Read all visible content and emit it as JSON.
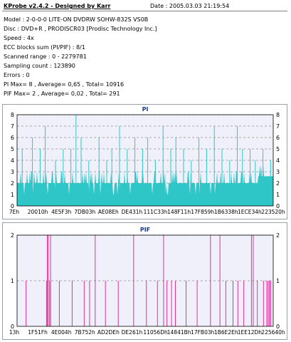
{
  "header": {
    "title": "KProbe v2.4.2 - Designed by Karr",
    "date": "Date : 2005.03.03 21:19:54"
  },
  "info_lines": [
    "Model : 2-0-0-0 LITE-ON DVDRW SOHW-832S  VS0B",
    "Disc : DVD+R , PRODISCR03 [Prodisc Technology Inc.]",
    "Speed : 4x",
    "ECC blocks sum (PI/PIF) : 8/1",
    "Scanned range : 0 - 2279781",
    "Sampling count : 123890",
    "Errors : 0",
    "PI Max= 8 , Average= 0,65 , Total= 10916",
    "PIF Max= 2 , Average= 0,02 , Total= 291"
  ],
  "colors": {
    "pi": "#2ec6c6",
    "pif": "#e0309a",
    "title": "#1a3a8a",
    "grid": "#909090",
    "plot_bg": "#f0f0fa"
  },
  "chart_data": [
    {
      "type": "bar",
      "title": "PI",
      "ylim": [
        0,
        8
      ],
      "y_ticks": [
        "0",
        "1",
        "2",
        "3",
        "4",
        "5",
        "6",
        "7",
        "8"
      ],
      "x_tick_labels": [
        "7Eh",
        "20010h",
        "4E5F3h",
        "7DB03h",
        "AE08Eh",
        "DE431h",
        "111C33h",
        "148F11h",
        "17F859h",
        "1B6338h",
        "1ECE34h",
        "223520h"
      ],
      "baseline": "mostly 1-3 with spikes up to 8",
      "spikes": [
        {
          "x_frac": 0.02,
          "y": 5
        },
        {
          "x_frac": 0.06,
          "y": 6
        },
        {
          "x_frac": 0.09,
          "y": 5
        },
        {
          "x_frac": 0.11,
          "y": 7
        },
        {
          "x_frac": 0.15,
          "y": 4
        },
        {
          "x_frac": 0.18,
          "y": 5
        },
        {
          "x_frac": 0.21,
          "y": 5
        },
        {
          "x_frac": 0.23,
          "y": 8
        },
        {
          "x_frac": 0.25,
          "y": 6
        },
        {
          "x_frac": 0.28,
          "y": 4
        },
        {
          "x_frac": 0.32,
          "y": 6
        },
        {
          "x_frac": 0.35,
          "y": 4
        },
        {
          "x_frac": 0.37,
          "y": 5
        },
        {
          "x_frac": 0.4,
          "y": 7
        },
        {
          "x_frac": 0.43,
          "y": 5
        },
        {
          "x_frac": 0.46,
          "y": 6
        },
        {
          "x_frac": 0.49,
          "y": 5
        },
        {
          "x_frac": 0.51,
          "y": 6
        },
        {
          "x_frac": 0.54,
          "y": 4
        },
        {
          "x_frac": 0.57,
          "y": 7
        },
        {
          "x_frac": 0.6,
          "y": 5
        },
        {
          "x_frac": 0.62,
          "y": 6
        },
        {
          "x_frac": 0.65,
          "y": 5
        },
        {
          "x_frac": 0.68,
          "y": 4
        },
        {
          "x_frac": 0.71,
          "y": 6
        },
        {
          "x_frac": 0.74,
          "y": 5
        },
        {
          "x_frac": 0.77,
          "y": 7
        },
        {
          "x_frac": 0.8,
          "y": 5
        },
        {
          "x_frac": 0.83,
          "y": 4
        },
        {
          "x_frac": 0.86,
          "y": 7
        },
        {
          "x_frac": 0.88,
          "y": 5
        },
        {
          "x_frac": 0.91,
          "y": 5
        },
        {
          "x_frac": 0.93,
          "y": 4
        },
        {
          "x_frac": 0.96,
          "y": 5
        },
        {
          "x_frac": 0.99,
          "y": 4
        }
      ]
    },
    {
      "type": "bar",
      "title": "PIF",
      "ylim": [
        0,
        2
      ],
      "y_ticks": [
        "0",
        "1",
        "2"
      ],
      "x_tick_labels": [
        "13h",
        "1F51Fh",
        "4E004h",
        "7B752h",
        "AD2DEh",
        "DE261h",
        "11056Dh",
        "14841Bh",
        "17FB03h",
        "1B6E2Eh",
        "1EE12Dh",
        "225640h"
      ],
      "bars": [
        {
          "x_frac": 0.035,
          "y": 1
        },
        {
          "x_frac": 0.115,
          "y": 1
        },
        {
          "x_frac": 0.118,
          "y": 2
        },
        {
          "x_frac": 0.122,
          "y": 2
        },
        {
          "x_frac": 0.127,
          "y": 1
        },
        {
          "x_frac": 0.131,
          "y": 2
        },
        {
          "x_frac": 0.165,
          "y": 1
        },
        {
          "x_frac": 0.215,
          "y": 1
        },
        {
          "x_frac": 0.262,
          "y": 1
        },
        {
          "x_frac": 0.283,
          "y": 1
        },
        {
          "x_frac": 0.305,
          "y": 2
        },
        {
          "x_frac": 0.345,
          "y": 1
        },
        {
          "x_frac": 0.395,
          "y": 1
        },
        {
          "x_frac": 0.455,
          "y": 2
        },
        {
          "x_frac": 0.505,
          "y": 1
        },
        {
          "x_frac": 0.548,
          "y": 1
        },
        {
          "x_frac": 0.572,
          "y": 2
        },
        {
          "x_frac": 0.585,
          "y": 1
        },
        {
          "x_frac": 0.603,
          "y": 1
        },
        {
          "x_frac": 0.618,
          "y": 1
        },
        {
          "x_frac": 0.66,
          "y": 1
        },
        {
          "x_frac": 0.703,
          "y": 1
        },
        {
          "x_frac": 0.755,
          "y": 2
        },
        {
          "x_frac": 0.792,
          "y": 2
        },
        {
          "x_frac": 0.815,
          "y": 1
        },
        {
          "x_frac": 0.843,
          "y": 1
        },
        {
          "x_frac": 0.862,
          "y": 1
        },
        {
          "x_frac": 0.885,
          "y": 1
        },
        {
          "x_frac": 0.915,
          "y": 2
        },
        {
          "x_frac": 0.922,
          "y": 2
        },
        {
          "x_frac": 0.938,
          "y": 1
        },
        {
          "x_frac": 0.962,
          "y": 1
        },
        {
          "x_frac": 0.975,
          "y": 1
        },
        {
          "x_frac": 0.98,
          "y": 1
        },
        {
          "x_frac": 0.985,
          "y": 1
        },
        {
          "x_frac": 0.99,
          "y": 1
        }
      ]
    }
  ]
}
